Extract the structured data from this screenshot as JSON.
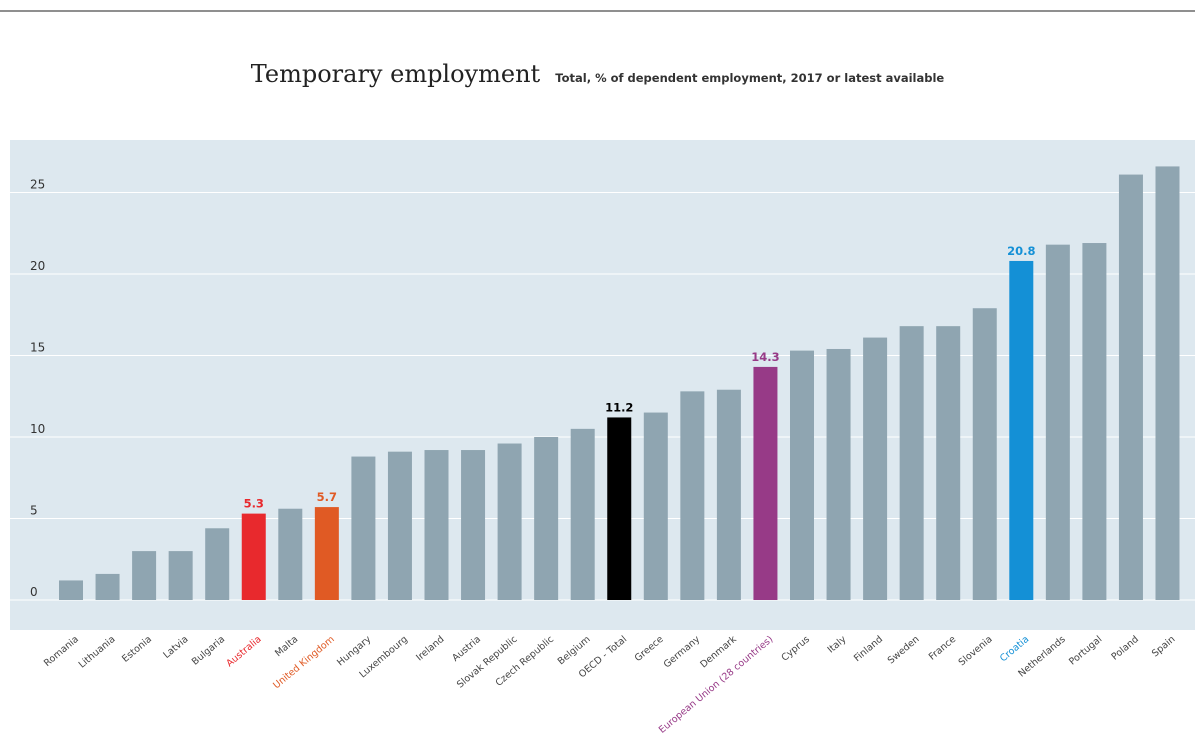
{
  "header": {
    "title": "Temporary employment",
    "subtitle": "Total, % of dependent employment, 2017 or latest available"
  },
  "colors": {
    "plot_background": "#dde8ef",
    "gridline": "#ffffff",
    "bar_default": "#8fa5b1",
    "tick_label": "#333333",
    "category_label": "#444444",
    "australia": "#e8292d",
    "united_kingdom": "#e05a24",
    "oecd_total": "#000000",
    "european_union": "#973a87",
    "croatia": "#1490d6"
  },
  "chart_data": {
    "type": "bar",
    "title": "Temporary employment",
    "subtitle": "Total, % of dependent employment, 2017 or latest available",
    "xlabel": "",
    "ylabel": "",
    "ylim": [
      -1.7,
      28
    ],
    "yticks": [
      0,
      5,
      10,
      15,
      20,
      25
    ],
    "grid": true,
    "legend": "none",
    "categories": [
      "Romania",
      "Lithuania",
      "Estonia",
      "Latvia",
      "Bulgaria",
      "Australia",
      "Malta",
      "United Kingdom",
      "Hungary",
      "Luxembourg",
      "Ireland",
      "Austria",
      "Slovak Republic",
      "Czech Republic",
      "Belgium",
      "OECD - Total",
      "Greece",
      "Germany",
      "Denmark",
      "European Union (28 countries)",
      "Cyprus",
      "Italy",
      "Finland",
      "Sweden",
      "France",
      "Slovenia",
      "Croatia",
      "Netherlands",
      "Portugal",
      "Poland",
      "Spain"
    ],
    "values": [
      1.2,
      1.6,
      3.0,
      3.0,
      4.4,
      5.3,
      5.6,
      5.7,
      8.8,
      9.1,
      9.2,
      9.2,
      9.6,
      10.0,
      10.5,
      11.2,
      11.5,
      12.8,
      12.9,
      14.3,
      15.3,
      15.4,
      16.1,
      16.8,
      16.8,
      17.9,
      20.8,
      21.8,
      21.9,
      26.1,
      26.6
    ],
    "highlights": [
      {
        "category": "Australia",
        "label": "5.3",
        "color": "#e8292d"
      },
      {
        "category": "United Kingdom",
        "label": "5.7",
        "color": "#e05a24"
      },
      {
        "category": "OECD - Total",
        "label": "11.2",
        "color": "#000000"
      },
      {
        "category": "European Union (28 countries)",
        "label": "14.3",
        "color": "#973a87"
      },
      {
        "category": "Croatia",
        "label": "20.8",
        "color": "#1490d6"
      }
    ]
  }
}
